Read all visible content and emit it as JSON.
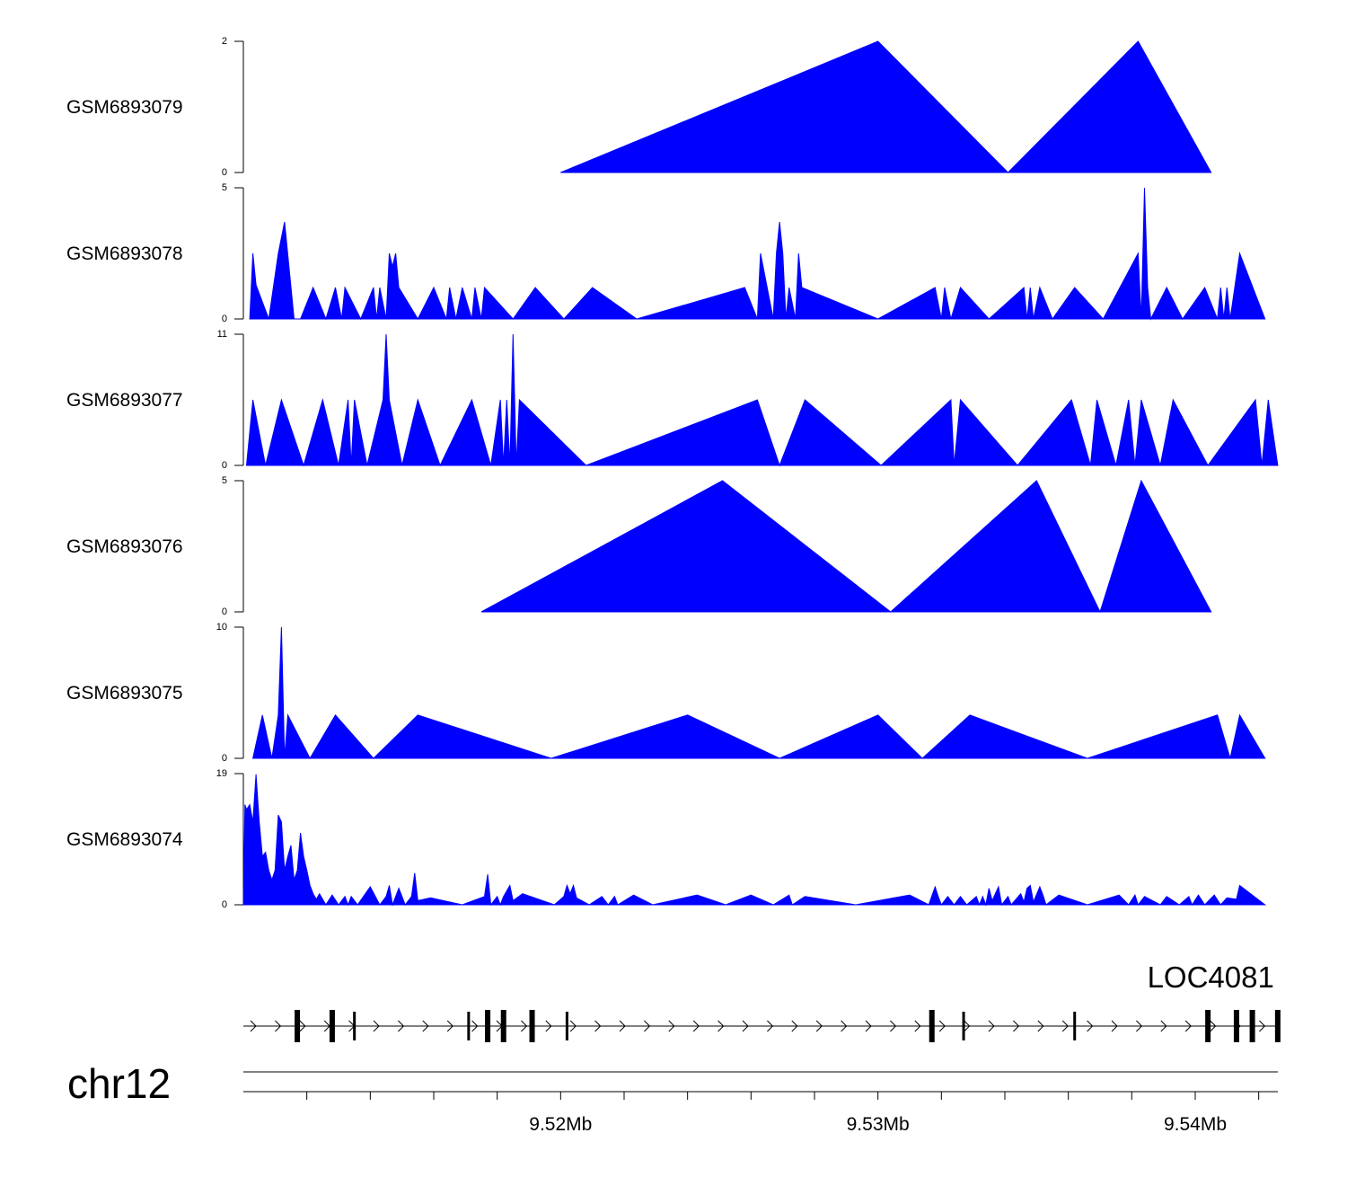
{
  "chart_data": {
    "type": "area",
    "title": "",
    "region": {
      "chromosome": "chr12",
      "start_mb": 9.51,
      "end_mb": 9.5426
    },
    "x_axis": {
      "unit": "Mb",
      "tick_labels": [
        "9.52Mb",
        "9.53Mb",
        "9.54Mb"
      ],
      "tick_label_values": [
        9.52,
        9.53,
        9.54
      ],
      "minor_ticks": [
        9.512,
        9.514,
        9.516,
        9.518,
        9.52,
        9.522,
        9.524,
        9.526,
        9.528,
        9.53,
        9.532,
        9.534,
        9.536,
        9.538,
        9.54,
        9.542
      ]
    },
    "tracks": [
      {
        "name": "GSM6893079",
        "ymin": 0,
        "ymax": 2,
        "ymin_label": "0",
        "ymax_label": "2",
        "points": [
          [
            9.52,
            0
          ],
          [
            9.53,
            2
          ],
          [
            9.5341,
            0
          ],
          [
            9.5382,
            2
          ],
          [
            9.5405,
            0
          ]
        ]
      },
      {
        "name": "GSM6893078",
        "ymin": 0,
        "ymax": 5,
        "ymin_label": "0",
        "ymax_label": "5",
        "points": [
          [
            9.5102,
            0
          ],
          [
            9.5103,
            2.5
          ],
          [
            9.5104,
            1.3
          ],
          [
            9.5108,
            0
          ],
          [
            9.5111,
            2.5
          ],
          [
            9.5113,
            3.7
          ],
          [
            9.5116,
            0
          ],
          [
            9.5118,
            0
          ],
          [
            9.5122,
            1.2
          ],
          [
            9.5126,
            0
          ],
          [
            9.5129,
            1.2
          ],
          [
            9.5131,
            0
          ],
          [
            9.5132,
            1.2
          ],
          [
            9.5137,
            0
          ],
          [
            9.5141,
            1.2
          ],
          [
            9.5142,
            0
          ],
          [
            9.5143,
            1.2
          ],
          [
            9.5145,
            0
          ],
          [
            9.5146,
            2.5
          ],
          [
            9.5147,
            2
          ],
          [
            9.5148,
            2.5
          ],
          [
            9.5149,
            1.2
          ],
          [
            9.5155,
            0
          ],
          [
            9.516,
            1.2
          ],
          [
            9.5164,
            0
          ],
          [
            9.5165,
            1.2
          ],
          [
            9.5167,
            0
          ],
          [
            9.5169,
            1.2
          ],
          [
            9.5172,
            0
          ],
          [
            9.5173,
            1.2
          ],
          [
            9.5175,
            0
          ],
          [
            9.5176,
            1.2
          ],
          [
            9.5185,
            0
          ],
          [
            9.5192,
            1.2
          ],
          [
            9.5201,
            0
          ],
          [
            9.521,
            1.2
          ],
          [
            9.5224,
            0
          ],
          [
            9.5258,
            1.2
          ],
          [
            9.5262,
            0
          ],
          [
            9.5263,
            2.5
          ],
          [
            9.5267,
            0
          ],
          [
            9.5268,
            2.5
          ],
          [
            9.5269,
            3.7
          ],
          [
            9.527,
            2.5
          ],
          [
            9.5271,
            0
          ],
          [
            9.5272,
            1.2
          ],
          [
            9.5274,
            0
          ],
          [
            9.5275,
            2.5
          ],
          [
            9.5276,
            1.2
          ],
          [
            9.53,
            0
          ],
          [
            9.5318,
            1.2
          ],
          [
            9.532,
            0
          ],
          [
            9.5321,
            1.2
          ],
          [
            9.5323,
            0
          ],
          [
            9.5326,
            1.2
          ],
          [
            9.5335,
            0
          ],
          [
            9.5346,
            1.2
          ],
          [
            9.5347,
            0
          ],
          [
            9.5348,
            1.2
          ],
          [
            9.5349,
            0
          ],
          [
            9.5351,
            1.2
          ],
          [
            9.5355,
            0
          ],
          [
            9.5362,
            1.2
          ],
          [
            9.5371,
            0
          ],
          [
            9.5382,
            2.5
          ],
          [
            9.5383,
            0
          ],
          [
            9.5384,
            5
          ],
          [
            9.5385,
            1.2
          ],
          [
            9.5386,
            0
          ],
          [
            9.5391,
            1.2
          ],
          [
            9.5396,
            0
          ],
          [
            9.5403,
            1.2
          ],
          [
            9.5407,
            0
          ],
          [
            9.5408,
            1.2
          ],
          [
            9.5409,
            0
          ],
          [
            9.541,
            1.2
          ],
          [
            9.5411,
            0
          ],
          [
            9.5414,
            2.5
          ],
          [
            9.5422,
            0
          ]
        ]
      },
      {
        "name": "GSM6893077",
        "ymin": 0,
        "ymax": 11,
        "ymin_label": "0",
        "ymax_label": "11",
        "points": [
          [
            9.5101,
            0
          ],
          [
            9.5103,
            5.5
          ],
          [
            9.5107,
            0
          ],
          [
            9.5112,
            5.5
          ],
          [
            9.5119,
            0
          ],
          [
            9.5125,
            5.5
          ],
          [
            9.513,
            0
          ],
          [
            9.5133,
            5.5
          ],
          [
            9.5134,
            0
          ],
          [
            9.5135,
            5.5
          ],
          [
            9.5139,
            0
          ],
          [
            9.5144,
            5.5
          ],
          [
            9.5145,
            11
          ],
          [
            9.5146,
            5.5
          ],
          [
            9.515,
            0
          ],
          [
            9.5155,
            5.5
          ],
          [
            9.5162,
            0
          ],
          [
            9.5172,
            5.5
          ],
          [
            9.5178,
            0
          ],
          [
            9.5181,
            5.5
          ],
          [
            9.5182,
            0
          ],
          [
            9.5183,
            5.5
          ],
          [
            9.5184,
            0
          ],
          [
            9.5185,
            11
          ],
          [
            9.5186,
            0
          ],
          [
            9.5187,
            5.5
          ],
          [
            9.5208,
            0
          ],
          [
            9.5262,
            5.5
          ],
          [
            9.5269,
            0
          ],
          [
            9.5277,
            5.5
          ],
          [
            9.5301,
            0
          ],
          [
            9.5323,
            5.5
          ],
          [
            9.5324,
            0
          ],
          [
            9.5326,
            5.5
          ],
          [
            9.5344,
            0
          ],
          [
            9.5361,
            5.5
          ],
          [
            9.5367,
            0
          ],
          [
            9.5369,
            5.5
          ],
          [
            9.5375,
            0
          ],
          [
            9.5379,
            5.5
          ],
          [
            9.5381,
            0
          ],
          [
            9.5383,
            5.5
          ],
          [
            9.5389,
            0
          ],
          [
            9.5393,
            5.5
          ],
          [
            9.5404,
            0
          ],
          [
            9.5419,
            5.5
          ],
          [
            9.5421,
            0
          ],
          [
            9.5423,
            5.5
          ],
          [
            9.5426,
            0
          ]
        ]
      },
      {
        "name": "GSM6893076",
        "ymin": 0,
        "ymax": 5,
        "ymin_label": "0",
        "ymax_label": "5",
        "points": [
          [
            9.5175,
            0
          ],
          [
            9.5251,
            5
          ],
          [
            9.5304,
            0
          ],
          [
            9.535,
            5
          ],
          [
            9.537,
            0
          ],
          [
            9.5383,
            5
          ],
          [
            9.5405,
            0
          ]
        ]
      },
      {
        "name": "GSM6893075",
        "ymin": 0,
        "ymax": 10,
        "ymin_label": "0",
        "ymax_label": "10",
        "points": [
          [
            9.5103,
            0
          ],
          [
            9.5106,
            3.3
          ],
          [
            9.5109,
            0
          ],
          [
            9.5111,
            3.3
          ],
          [
            9.5112,
            10
          ],
          [
            9.5113,
            0
          ],
          [
            9.5114,
            3.3
          ],
          [
            9.5121,
            0
          ],
          [
            9.5129,
            3.3
          ],
          [
            9.5141,
            0
          ],
          [
            9.5155,
            3.3
          ],
          [
            9.5197,
            0
          ],
          [
            9.524,
            3.3
          ],
          [
            9.5269,
            0
          ],
          [
            9.53,
            3.3
          ],
          [
            9.5314,
            0
          ],
          [
            9.5329,
            3.3
          ],
          [
            9.5366,
            0
          ],
          [
            9.5407,
            3.3
          ],
          [
            9.5411,
            0
          ],
          [
            9.5414,
            3.3
          ],
          [
            9.5422,
            0
          ]
        ]
      },
      {
        "name": "GSM6893074",
        "ymin": 0,
        "ymax": 19,
        "ymin_label": "0",
        "ymax_label": "19",
        "points": [
          [
            9.51,
            0
          ],
          [
            9.51005,
            14.5
          ],
          [
            9.5101,
            13.8
          ],
          [
            9.5102,
            14.5
          ],
          [
            9.5103,
            12
          ],
          [
            9.5104,
            18.9
          ],
          [
            9.5105,
            12
          ],
          [
            9.5106,
            7
          ],
          [
            9.5107,
            7.6
          ],
          [
            9.5108,
            5
          ],
          [
            9.5109,
            3.6
          ],
          [
            9.511,
            5
          ],
          [
            9.5111,
            13
          ],
          [
            9.5112,
            12
          ],
          [
            9.5113,
            5
          ],
          [
            9.5114,
            7
          ],
          [
            9.5115,
            8.6
          ],
          [
            9.5116,
            3.6
          ],
          [
            9.5117,
            5
          ],
          [
            9.5118,
            10.4
          ],
          [
            9.5119,
            7
          ],
          [
            9.512,
            5
          ],
          [
            9.5121,
            2.8
          ],
          [
            9.5122,
            1.6
          ],
          [
            9.5123,
            0.8
          ],
          [
            9.5124,
            1.6
          ],
          [
            9.5126,
            0
          ],
          [
            9.5128,
            1.4
          ],
          [
            9.513,
            0
          ],
          [
            9.5132,
            1.2
          ],
          [
            9.5133,
            0
          ],
          [
            9.5134,
            1.2
          ],
          [
            9.5136,
            0
          ],
          [
            9.514,
            2.6
          ],
          [
            9.5143,
            0
          ],
          [
            9.5145,
            1.2
          ],
          [
            9.5146,
            2.8
          ],
          [
            9.5147,
            0
          ],
          [
            9.5148,
            1.2
          ],
          [
            9.5149,
            2.4
          ],
          [
            9.515,
            1.2
          ],
          [
            9.5151,
            0
          ],
          [
            9.5153,
            1.2
          ],
          [
            9.5154,
            4.6
          ],
          [
            9.5155,
            0.6
          ],
          [
            9.5159,
            1
          ],
          [
            9.5169,
            0
          ],
          [
            9.5176,
            1.2
          ],
          [
            9.5177,
            4.4
          ],
          [
            9.5178,
            0
          ],
          [
            9.518,
            1.2
          ],
          [
            9.5181,
            0
          ],
          [
            9.5182,
            1.2
          ],
          [
            9.5184,
            2.8
          ],
          [
            9.5185,
            0.6
          ],
          [
            9.5188,
            1.6
          ],
          [
            9.5198,
            0
          ],
          [
            9.5201,
            1.2
          ],
          [
            9.5202,
            2.8
          ],
          [
            9.5203,
            1.6
          ],
          [
            9.5204,
            2.8
          ],
          [
            9.5205,
            1
          ],
          [
            9.5209,
            0
          ],
          [
            9.5213,
            1.2
          ],
          [
            9.5215,
            0
          ],
          [
            9.5217,
            1.2
          ],
          [
            9.5218,
            0
          ],
          [
            9.5223,
            1.4
          ],
          [
            9.5229,
            0
          ],
          [
            9.5243,
            1.4
          ],
          [
            9.5252,
            0
          ],
          [
            9.526,
            1.4
          ],
          [
            9.5267,
            0
          ],
          [
            9.5272,
            1.4
          ],
          [
            9.5273,
            0
          ],
          [
            9.5277,
            1.2
          ],
          [
            9.5293,
            0
          ],
          [
            9.531,
            1.4
          ],
          [
            9.5316,
            0
          ],
          [
            9.5318,
            2.6
          ],
          [
            9.5319,
            1.2
          ],
          [
            9.532,
            0
          ],
          [
            9.5322,
            1.2
          ],
          [
            9.5324,
            0
          ],
          [
            9.5326,
            1.2
          ],
          [
            9.5328,
            0
          ],
          [
            9.5331,
            1.2
          ],
          [
            9.5332,
            0
          ],
          [
            9.5333,
            1.2
          ],
          [
            9.5334,
            0
          ],
          [
            9.5335,
            2.4
          ],
          [
            9.5336,
            0.6
          ],
          [
            9.5338,
            2.6
          ],
          [
            9.5339,
            0
          ],
          [
            9.5341,
            1.2
          ],
          [
            9.5342,
            0
          ],
          [
            9.5345,
            1.6
          ],
          [
            9.5346,
            0.4
          ],
          [
            9.5347,
            2.4
          ],
          [
            9.5348,
            2.8
          ],
          [
            9.5349,
            0.4
          ],
          [
            9.5351,
            2.6
          ],
          [
            9.5352,
            1.4
          ],
          [
            9.5353,
            0
          ],
          [
            9.5357,
            1.4
          ],
          [
            9.5366,
            0
          ],
          [
            9.5376,
            1.4
          ],
          [
            9.5379,
            0
          ],
          [
            9.5381,
            1.4
          ],
          [
            9.5382,
            0
          ],
          [
            9.5384,
            1.2
          ],
          [
            9.5389,
            0
          ],
          [
            9.5391,
            1.2
          ],
          [
            9.5395,
            0
          ],
          [
            9.5398,
            1.2
          ],
          [
            9.5399,
            0
          ],
          [
            9.5401,
            1.4
          ],
          [
            9.5403,
            0
          ],
          [
            9.5406,
            1.4
          ],
          [
            9.5408,
            0
          ],
          [
            9.541,
            1
          ],
          [
            9.5413,
            0.8
          ],
          [
            9.5414,
            2.8
          ],
          [
            9.5422,
            0
          ]
        ]
      }
    ],
    "gene_track": {
      "gene_name": "LOC4081",
      "strand": "+",
      "start_mb": 9.51,
      "end_mb": 9.5426,
      "exons_mb": [
        9.5117,
        9.5128,
        9.5135,
        9.5171,
        9.5177,
        9.5182,
        9.5191,
        9.5202,
        9.5317,
        9.5327,
        9.5362,
        9.5404,
        9.5413,
        9.5418,
        9.5426
      ],
      "exon_sizes": [
        "large",
        "large",
        "small",
        "small",
        "large",
        "large",
        "large",
        "small",
        "large",
        "small",
        "small",
        "large",
        "large",
        "large",
        "large"
      ]
    }
  }
}
